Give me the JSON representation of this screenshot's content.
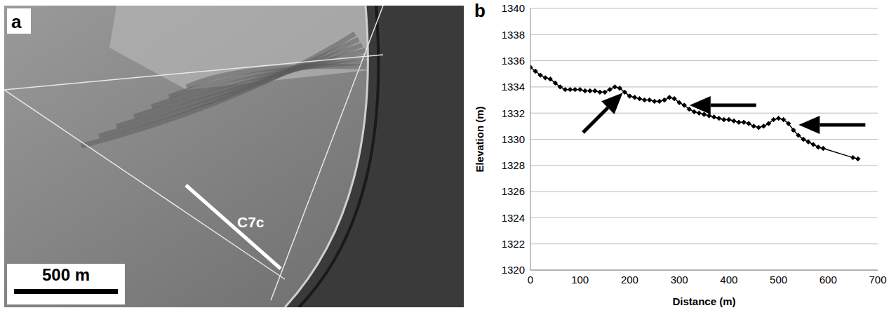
{
  "image_panel": {
    "letter": "a",
    "line_label": "C7c",
    "scale_bar_label": "500 m"
  },
  "chart_panel": {
    "letter": "b"
  },
  "chart_data": {
    "type": "line",
    "x_label": "Distance (m)",
    "y_label": "Elevation (m)",
    "x": [
      0,
      10,
      20,
      30,
      40,
      50,
      60,
      70,
      80,
      90,
      100,
      110,
      120,
      130,
      140,
      150,
      160,
      170,
      180,
      190,
      200,
      210,
      220,
      230,
      240,
      250,
      260,
      270,
      280,
      290,
      300,
      310,
      320,
      330,
      340,
      350,
      360,
      370,
      380,
      390,
      400,
      410,
      420,
      430,
      440,
      450,
      460,
      470,
      480,
      490,
      500,
      510,
      520,
      530,
      540,
      550,
      560,
      570,
      580,
      590,
      650,
      660
    ],
    "values": [
      1335.5,
      1335.2,
      1334.9,
      1334.7,
      1334.6,
      1334.3,
      1334.0,
      1333.8,
      1333.8,
      1333.8,
      1333.8,
      1333.7,
      1333.7,
      1333.7,
      1333.6,
      1333.6,
      1333.8,
      1334.0,
      1333.9,
      1333.6,
      1333.3,
      1333.2,
      1333.1,
      1333.0,
      1333.0,
      1332.9,
      1332.9,
      1333.0,
      1333.2,
      1333.1,
      1332.8,
      1332.6,
      1332.3,
      1332.1,
      1332.0,
      1331.9,
      1331.8,
      1331.7,
      1331.6,
      1331.5,
      1331.5,
      1331.4,
      1331.3,
      1331.3,
      1331.2,
      1331.0,
      1330.9,
      1331.0,
      1331.2,
      1331.5,
      1331.6,
      1331.5,
      1331.2,
      1330.7,
      1330.3,
      1330.0,
      1329.8,
      1329.6,
      1329.4,
      1329.3,
      1328.6,
      1328.5
    ],
    "color": "#000000",
    "marker": "diamond",
    "line_style": "solid",
    "xlim": [
      0,
      700
    ],
    "xticks": [
      0,
      100,
      200,
      300,
      400,
      500,
      600,
      700
    ],
    "ylim": [
      1320,
      1340
    ],
    "yticks": [
      1320,
      1322,
      1324,
      1326,
      1328,
      1330,
      1332,
      1334,
      1336,
      1338,
      1340
    ],
    "grid": true,
    "arrows": [
      {
        "x": 190,
        "y": 1333.7,
        "direction": "up-right"
      },
      {
        "x": 315,
        "y": 1332.6,
        "direction": "left"
      },
      {
        "x": 535,
        "y": 1331.1,
        "direction": "left"
      }
    ]
  }
}
